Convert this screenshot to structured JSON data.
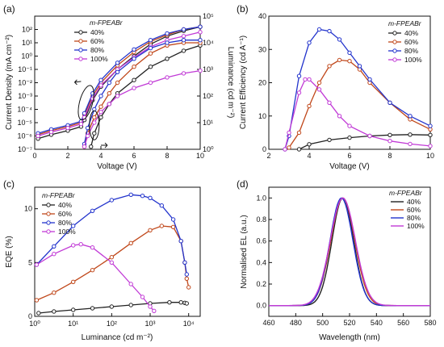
{
  "colors": {
    "40%": "#222222",
    "60%": "#c0471a",
    "80%": "#2233cc",
    "100%": "#c13ad6"
  },
  "chart_data": [
    {
      "panel": "(a)",
      "type": "line",
      "xlabel": "Voltage (V)",
      "ylabel": "Current Density (mA cm⁻²)",
      "ylabel_right": "Luminance (cd m⁻²)",
      "xlim": [
        0,
        10
      ],
      "xticks": [
        "0",
        "2",
        "4",
        "6",
        "8",
        "10"
      ],
      "ylim_log": [
        -7,
        3
      ],
      "yticks": [
        "10⁻⁷",
        "10⁻⁶",
        "10⁻⁵",
        "10⁻⁴",
        "10⁻³",
        "10⁻²",
        "10⁻¹",
        "10⁰",
        "10¹",
        "10²"
      ],
      "y2lim_log": [
        0,
        5
      ],
      "y2ticks": [
        "10⁰",
        "10¹",
        "10²",
        "10³",
        "10⁴",
        "10⁵"
      ],
      "legend_title": "m-FPEABr",
      "legend_names": [
        "40%",
        "60%",
        "80%",
        "100%"
      ],
      "current_density": [
        {
          "name": "40%",
          "x": [
            0.2,
            1,
            2,
            2.8,
            3.0,
            3.5,
            4,
            5,
            6,
            7,
            8,
            9,
            10
          ],
          "log_y": [
            -6.2,
            -5.9,
            -5.6,
            -5.3,
            -4.8,
            -3.3,
            -2.3,
            -1.0,
            0.0,
            0.9,
            1.5,
            1.9,
            2.2
          ]
        },
        {
          "name": "60%",
          "x": [
            0.2,
            1,
            2,
            2.8,
            3.0,
            3.5,
            4,
            5,
            6,
            7,
            8,
            9,
            10
          ],
          "log_y": [
            -5.9,
            -5.6,
            -5.3,
            -5.0,
            -4.4,
            -3.0,
            -2.0,
            -0.7,
            0.3,
            1.1,
            1.6,
            2.0,
            2.2
          ]
        },
        {
          "name": "80%",
          "x": [
            0.2,
            1,
            2,
            2.8,
            3.0,
            3.5,
            4,
            5,
            6,
            7,
            8,
            9,
            10
          ],
          "log_y": [
            -5.8,
            -5.5,
            -5.2,
            -4.9,
            -4.3,
            -2.8,
            -1.8,
            -0.5,
            0.5,
            1.2,
            1.7,
            2.0,
            2.2
          ]
        },
        {
          "name": "100%",
          "x": [
            0.2,
            1,
            2,
            2.8,
            3.0,
            3.5,
            4,
            5,
            6,
            7,
            8,
            9,
            10
          ],
          "log_y": [
            -6.0,
            -5.7,
            -5.4,
            -5.1,
            -4.6,
            -3.2,
            -2.2,
            -1.0,
            -0.1,
            0.7,
            1.2,
            1.5,
            1.8
          ]
        }
      ],
      "luminance": [
        {
          "name": "40%",
          "x": [
            3.4,
            3.6,
            4,
            4.5,
            5,
            6,
            7,
            8,
            9,
            10
          ],
          "log_y": [
            0.1,
            0.6,
            1.2,
            1.7,
            2.1,
            2.6,
            3.1,
            3.4,
            3.7,
            3.9
          ]
        },
        {
          "name": "60%",
          "x": [
            3.0,
            3.2,
            3.6,
            4,
            4.5,
            5,
            6,
            7,
            8,
            9,
            10
          ],
          "log_y": [
            0.1,
            0.6,
            1.2,
            1.6,
            2.1,
            2.5,
            3.1,
            3.6,
            3.9,
            4.0,
            4.0
          ]
        },
        {
          "name": "80%",
          "x": [
            3.0,
            3.2,
            3.6,
            4,
            4.5,
            5,
            6,
            7,
            8,
            9,
            10
          ],
          "log_y": [
            0.2,
            0.8,
            1.5,
            2.0,
            2.5,
            2.9,
            3.4,
            3.8,
            4.0,
            4.1,
            4.1
          ]
        },
        {
          "name": "100%",
          "x": [
            3.0,
            3.2,
            3.6,
            4,
            4.5,
            5,
            6,
            7,
            8,
            9,
            10
          ],
          "log_y": [
            0.1,
            0.5,
            1.0,
            1.4,
            1.7,
            2.0,
            2.3,
            2.5,
            2.7,
            2.85,
            2.95
          ]
        }
      ]
    },
    {
      "panel": "(b)",
      "type": "line",
      "xlabel": "Voltage (V)",
      "ylabel": "Current Efficiency (cd A⁻¹)",
      "xlim": [
        2,
        10
      ],
      "xticks": [
        "2",
        "4",
        "6",
        "8",
        "10"
      ],
      "ylim": [
        0,
        40
      ],
      "yticks": [
        "0",
        "10",
        "20",
        "30",
        "40"
      ],
      "legend_title": "m-FPEABr",
      "series": [
        {
          "name": "40%",
          "x": [
            3.5,
            4,
            5,
            6,
            7,
            8,
            9,
            10
          ],
          "y": [
            0,
            1.5,
            2.8,
            3.5,
            4.0,
            4.3,
            4.4,
            4.3
          ]
        },
        {
          "name": "60%",
          "x": [
            3.0,
            3.5,
            4,
            4.5,
            5,
            5.5,
            6,
            6.5,
            7,
            8,
            9,
            10
          ],
          "y": [
            0.5,
            5,
            13,
            20,
            25,
            26.8,
            26.5,
            24,
            20,
            14,
            9,
            6
          ]
        },
        {
          "name": "80%",
          "x": [
            2.8,
            3.0,
            3.5,
            4,
            4.5,
            5,
            5.5,
            6,
            6.5,
            7,
            8,
            9,
            10
          ],
          "y": [
            0,
            4,
            22,
            32,
            36,
            35.5,
            33,
            29,
            25,
            21,
            14,
            10,
            7
          ]
        },
        {
          "name": "100%",
          "x": [
            2.8,
            3.0,
            3.5,
            3.8,
            4.0,
            4.5,
            5,
            5.5,
            6,
            7,
            8,
            9,
            10
          ],
          "y": [
            0,
            5,
            17,
            21,
            21,
            18,
            14,
            10,
            7,
            4,
            2.5,
            1.6,
            1.0
          ]
        }
      ]
    },
    {
      "panel": "(c)",
      "type": "line",
      "xlabel": "Luminance (cd m⁻²)",
      "ylabel": "EQE (%)",
      "xlim_log": [
        0,
        4.3
      ],
      "xticks": [
        "10⁰",
        "10¹",
        "10²",
        "10³",
        "10⁴"
      ],
      "ylim": [
        0,
        12
      ],
      "yticks": [
        "0",
        "5",
        "10"
      ],
      "legend_title": "m-FPEABr",
      "series": [
        {
          "name": "40%",
          "log_x": [
            0.1,
            0.5,
            1.0,
            1.5,
            2.0,
            2.5,
            3.0,
            3.5,
            3.8,
            3.9,
            3.95
          ],
          "y": [
            0.3,
            0.45,
            0.6,
            0.75,
            0.9,
            1.05,
            1.2,
            1.3,
            1.3,
            1.25,
            1.2
          ]
        },
        {
          "name": "60%",
          "log_x": [
            0.05,
            0.5,
            1.0,
            1.5,
            2.0,
            2.5,
            3.0,
            3.3,
            3.6,
            3.8,
            3.9,
            3.95,
            4.0
          ],
          "y": [
            1.5,
            2.2,
            3.2,
            4.3,
            5.5,
            6.8,
            8.0,
            8.4,
            8.3,
            7.0,
            5.0,
            3.5,
            2.7
          ]
        },
        {
          "name": "80%",
          "log_x": [
            0.05,
            0.5,
            1.0,
            1.5,
            2.0,
            2.5,
            2.8,
            3.0,
            3.3,
            3.6,
            3.8,
            3.9,
            3.95
          ],
          "y": [
            4.8,
            6.5,
            8.4,
            9.8,
            10.8,
            11.3,
            11.2,
            11.0,
            10.3,
            9.0,
            7.0,
            5.0,
            3.9
          ]
        },
        {
          "name": "100%",
          "log_x": [
            0.05,
            0.5,
            1.0,
            1.2,
            1.5,
            2.0,
            2.5,
            2.8,
            3.0,
            3.1
          ],
          "y": [
            4.8,
            5.8,
            6.6,
            6.7,
            6.4,
            5.0,
            3.0,
            1.8,
            0.9,
            0.5
          ]
        }
      ]
    },
    {
      "panel": "(d)",
      "type": "line",
      "xlabel": "Wavelength (nm)",
      "ylabel": "Normalised EL (a.u.)",
      "xlim": [
        460,
        580
      ],
      "xticks": [
        "460",
        "480",
        "500",
        "520",
        "540",
        "560",
        "580"
      ],
      "ylim": [
        -0.1,
        1.1
      ],
      "yticks": [
        "0.0",
        "0.2",
        "0.4",
        "0.6",
        "0.8",
        "1.0"
      ],
      "legend_title": "m-FPEABr",
      "peaks": [
        {
          "name": "40%",
          "peak_nm": 515,
          "fwhm_nm": 19
        },
        {
          "name": "60%",
          "peak_nm": 515,
          "fwhm_nm": 21
        },
        {
          "name": "80%",
          "peak_nm": 514,
          "fwhm_nm": 20
        },
        {
          "name": "100%",
          "peak_nm": 515,
          "fwhm_nm": 22
        }
      ]
    }
  ]
}
